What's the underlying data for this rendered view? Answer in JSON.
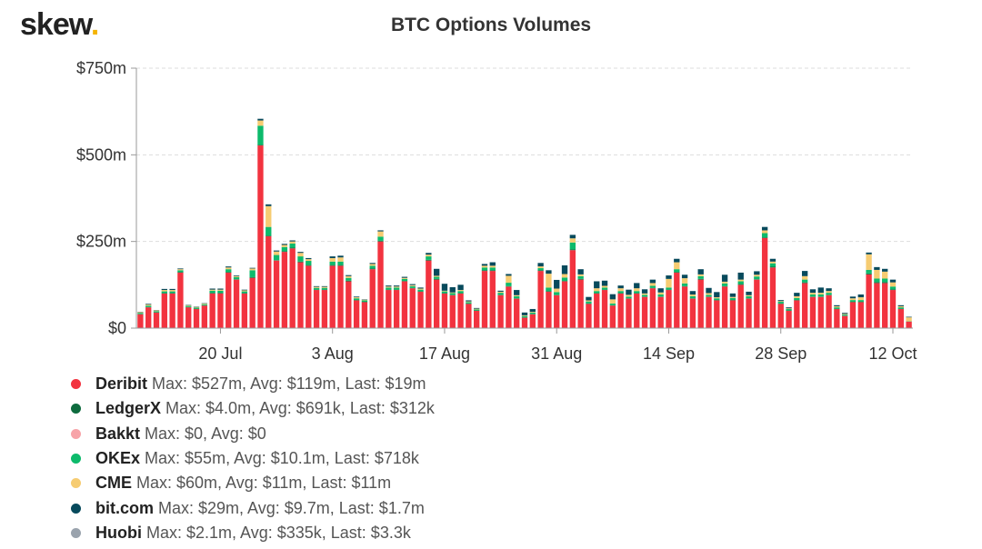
{
  "brand": {
    "name": "skew",
    "dot": "."
  },
  "chart_data": {
    "type": "bar",
    "stacked": true,
    "title": "BTC Options Volumes",
    "ylim": [
      0,
      750
    ],
    "yunit": "$m",
    "y_ticks": [
      {
        "value": 0,
        "label": "$0"
      },
      {
        "value": 250,
        "label": "$250m"
      },
      {
        "value": 500,
        "label": "$500m"
      },
      {
        "value": 750,
        "label": "$750m"
      }
    ],
    "x_ticks": [
      {
        "index": 10,
        "label": "20 Jul"
      },
      {
        "index": 24,
        "label": "3 Aug"
      },
      {
        "index": 38,
        "label": "17 Aug"
      },
      {
        "index": 52,
        "label": "31 Aug"
      },
      {
        "index": 66,
        "label": "14 Sep"
      },
      {
        "index": 80,
        "label": "28 Sep"
      },
      {
        "index": 94,
        "label": "12 Oct"
      }
    ],
    "series": [
      {
        "name": "Deribit",
        "color": "#f2333f",
        "values": [
          40,
          60,
          45,
          100,
          100,
          160,
          60,
          55,
          65,
          100,
          100,
          160,
          140,
          100,
          145,
          527,
          265,
          195,
          220,
          230,
          190,
          180,
          110,
          110,
          180,
          180,
          135,
          80,
          75,
          170,
          250,
          110,
          110,
          135,
          115,
          105,
          195,
          140,
          100,
          95,
          100,
          70,
          50,
          165,
          165,
          95,
          120,
          85,
          30,
          40,
          165,
          105,
          95,
          135,
          225,
          140,
          70,
          100,
          110,
          65,
          100,
          85,
          100,
          90,
          115,
          90,
          110,
          160,
          120,
          85,
          140,
          90,
          80,
          120,
          80,
          125,
          85,
          140,
          260,
          175,
          70,
          50,
          80,
          130,
          90,
          90,
          95,
          55,
          35,
          75,
          75,
          155,
          130,
          130,
          110,
          55,
          19
        ]
      },
      {
        "name": "LedgerX",
        "color": "#0e6b3e",
        "values": [
          1,
          1,
          1,
          1,
          1,
          2,
          1,
          1,
          1,
          2,
          2,
          2,
          1,
          1,
          2,
          2,
          2,
          1,
          2,
          2,
          2,
          2,
          1,
          1,
          2,
          2,
          2,
          1,
          1,
          2,
          2,
          1,
          1,
          1,
          1,
          1,
          2,
          2,
          1,
          1,
          1,
          1,
          1,
          2,
          2,
          1,
          1,
          1,
          1,
          1,
          2,
          2,
          1,
          1,
          2,
          2,
          1,
          1,
          1,
          1,
          1,
          1,
          1,
          1,
          1,
          1,
          1,
          2,
          1,
          1,
          2,
          1,
          1,
          1,
          1,
          2,
          1,
          1,
          2,
          2,
          1,
          1,
          1,
          2,
          1,
          1,
          1,
          1,
          1,
          1,
          1,
          3,
          3,
          3,
          2,
          1,
          0.3
        ]
      },
      {
        "name": "Bakkt",
        "color": "#f7a3a8",
        "values": [
          0,
          0,
          0,
          0,
          0,
          0,
          0,
          0,
          0,
          0,
          0,
          0,
          0,
          0,
          0,
          0,
          0,
          0,
          0,
          0,
          0,
          0,
          0,
          0,
          0,
          0,
          0,
          0,
          0,
          0,
          0,
          0,
          0,
          0,
          0,
          0,
          0,
          0,
          0,
          0,
          0,
          0,
          0,
          0,
          0,
          0,
          0,
          0,
          0,
          0,
          0,
          0,
          0,
          0,
          0,
          0,
          0,
          0,
          0,
          0,
          0,
          0,
          0,
          0,
          0,
          0,
          0,
          0,
          0,
          0,
          0,
          0,
          0,
          0,
          0,
          0,
          0,
          0,
          0,
          0,
          0,
          0,
          0,
          0,
          0,
          0,
          0,
          0,
          0,
          0,
          0,
          0,
          0,
          0,
          0,
          0,
          0
        ]
      },
      {
        "name": "OKEx",
        "color": "#0dba6b",
        "values": [
          3,
          4,
          3,
          5,
          5,
          5,
          3,
          3,
          3,
          6,
          6,
          8,
          6,
          5,
          20,
          55,
          25,
          15,
          12,
          12,
          15,
          12,
          5,
          5,
          10,
          10,
          8,
          5,
          4,
          8,
          12,
          6,
          6,
          6,
          5,
          5,
          10,
          6,
          5,
          5,
          6,
          4,
          3,
          8,
          8,
          6,
          10,
          6,
          4,
          4,
          6,
          10,
          8,
          10,
          20,
          8,
          6,
          6,
          6,
          5,
          6,
          5,
          6,
          5,
          6,
          6,
          6,
          8,
          8,
          6,
          8,
          5,
          5,
          8,
          6,
          8,
          6,
          8,
          12,
          10,
          5,
          4,
          6,
          8,
          6,
          6,
          6,
          4,
          3,
          5,
          5,
          10,
          10,
          10,
          8,
          4,
          0.7
        ]
      },
      {
        "name": "CME",
        "color": "#f6cc72",
        "values": [
          2,
          3,
          2,
          4,
          4,
          3,
          2,
          2,
          2,
          3,
          3,
          5,
          3,
          3,
          5,
          15,
          60,
          10,
          6,
          6,
          10,
          5,
          3,
          3,
          10,
          12,
          5,
          3,
          2,
          5,
          15,
          3,
          3,
          3,
          3,
          3,
          5,
          3,
          2,
          2,
          3,
          2,
          2,
          5,
          5,
          3,
          20,
          3,
          2,
          2,
          5,
          40,
          10,
          10,
          12,
          5,
          3,
          8,
          5,
          12,
          8,
          5,
          8,
          4,
          8,
          6,
          25,
          20,
          15,
          5,
          5,
          5,
          3,
          5,
          3,
          5,
          3,
          5,
          8,
          5,
          2,
          2,
          5,
          10,
          5,
          5,
          5,
          3,
          2,
          5,
          8,
          45,
          25,
          20,
          12,
          3,
          11
        ]
      },
      {
        "name": "bit.com",
        "color": "#074a5c",
        "values": [
          1,
          2,
          1,
          3,
          3,
          2,
          1,
          1,
          1,
          3,
          3,
          3,
          2,
          2,
          2,
          5,
          5,
          3,
          3,
          3,
          3,
          3,
          2,
          2,
          5,
          5,
          3,
          2,
          1,
          3,
          3,
          3,
          3,
          3,
          3,
          3,
          5,
          20,
          20,
          15,
          15,
          3,
          2,
          5,
          10,
          3,
          5,
          15,
          8,
          8,
          10,
          10,
          25,
          25,
          10,
          15,
          10,
          20,
          15,
          15,
          8,
          15,
          15,
          12,
          10,
          12,
          10,
          10,
          10,
          10,
          15,
          15,
          15,
          20,
          10,
          20,
          10,
          10,
          10,
          8,
          3,
          3,
          10,
          15,
          10,
          15,
          8,
          3,
          3,
          5,
          8,
          5,
          8,
          8,
          8,
          3,
          1.7
        ]
      },
      {
        "name": "Huobi",
        "color": "#9aa3ad",
        "values": [
          0.3,
          0.3,
          0.3,
          0.3,
          0.3,
          0.3,
          0.3,
          0.3,
          0.3,
          0.3,
          0.3,
          0.3,
          0.3,
          0.3,
          0.3,
          0.5,
          0.5,
          0.3,
          0.3,
          0.3,
          0.3,
          0.3,
          0.3,
          0.3,
          0.3,
          0.3,
          0.3,
          0.3,
          0.3,
          0.3,
          0.3,
          0.3,
          0.3,
          0.3,
          0.3,
          0.3,
          0.3,
          0.3,
          0.3,
          0.3,
          0.3,
          0.3,
          0.3,
          0.3,
          0.3,
          0.3,
          0.3,
          0.3,
          0.3,
          0.3,
          0.3,
          0.3,
          0.3,
          0.3,
          0.3,
          0.3,
          0.3,
          0.3,
          0.3,
          0.3,
          0.3,
          0.3,
          0.3,
          0.3,
          0.3,
          0.3,
          0.3,
          0.3,
          0.3,
          0.3,
          0.3,
          0.3,
          0.3,
          0.3,
          0.3,
          0.3,
          0.3,
          0.3,
          0.3,
          0.3,
          0.3,
          0.3,
          0.3,
          0.3,
          0.3,
          0.3,
          0.3,
          0.3,
          0.3,
          0.3,
          0.3,
          0.3,
          0.3,
          0.3,
          0.3,
          0.3,
          0.003
        ]
      }
    ]
  },
  "legend": [
    {
      "name": "Deribit",
      "color": "#f2333f",
      "stats": "Max: $527m, Avg: $119m, Last: $19m"
    },
    {
      "name": "LedgerX",
      "color": "#0e6b3e",
      "stats": "Max: $4.0m, Avg: $691k, Last: $312k"
    },
    {
      "name": "Bakkt",
      "color": "#f7a3a8",
      "stats": "Max: $0, Avg: $0"
    },
    {
      "name": "OKEx",
      "color": "#0dba6b",
      "stats": "Max: $55m, Avg: $10.1m, Last: $718k"
    },
    {
      "name": "CME",
      "color": "#f6cc72",
      "stats": "Max: $60m, Avg: $11m, Last: $11m"
    },
    {
      "name": "bit.com",
      "color": "#074a5c",
      "stats": "Max: $29m, Avg: $9.7m, Last: $1.7m"
    },
    {
      "name": "Huobi",
      "color": "#9aa3ad",
      "stats": "Max: $2.1m, Avg: $335k, Last: $3.3k"
    }
  ]
}
